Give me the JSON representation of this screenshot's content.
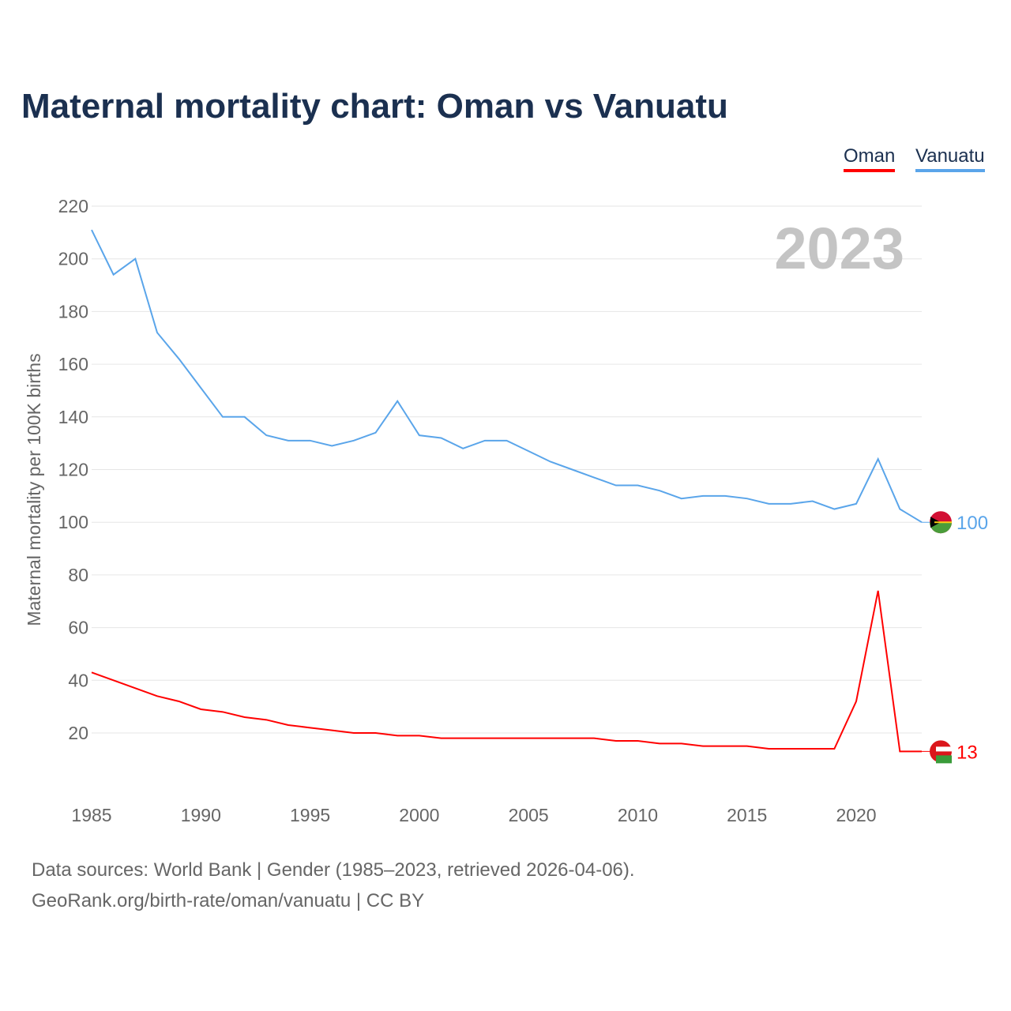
{
  "title": "Maternal mortality chart: Oman vs Vanuatu",
  "year_watermark": "2023",
  "footer": {
    "line1": "Data sources: World Bank | Gender (1985–2023, retrieved 2026-04-06).",
    "line2": "GeoRank.org/birth-rate/oman/vanuatu | CC BY"
  },
  "chart_data": {
    "type": "line",
    "title": "Maternal mortality chart: Oman vs Vanuatu",
    "xlabel": "",
    "ylabel": "Maternal mortality per 100K births",
    "xlim": [
      1985,
      2023
    ],
    "ylim": [
      0,
      220
    ],
    "x_ticks": [
      1985,
      1990,
      1995,
      2000,
      2005,
      2010,
      2015,
      2020
    ],
    "y_ticks": [
      20,
      40,
      60,
      80,
      100,
      120,
      140,
      160,
      180,
      200,
      220
    ],
    "grid": true,
    "legend_position": "top-right",
    "x": [
      1985,
      1986,
      1987,
      1988,
      1989,
      1990,
      1991,
      1992,
      1993,
      1994,
      1995,
      1996,
      1997,
      1998,
      1999,
      2000,
      2001,
      2002,
      2003,
      2004,
      2005,
      2006,
      2007,
      2008,
      2009,
      2010,
      2011,
      2012,
      2013,
      2014,
      2015,
      2016,
      2017,
      2018,
      2019,
      2020,
      2021,
      2022,
      2023
    ],
    "series": [
      {
        "name": "Oman",
        "color": "#ff0000",
        "end_label": "13",
        "values": [
          43,
          40,
          37,
          34,
          32,
          29,
          28,
          26,
          25,
          23,
          22,
          21,
          20,
          20,
          19,
          19,
          18,
          18,
          18,
          18,
          18,
          18,
          18,
          18,
          17,
          17,
          16,
          16,
          15,
          15,
          15,
          14,
          14,
          14,
          14,
          32,
          74,
          13,
          13
        ]
      },
      {
        "name": "Vanuatu",
        "color": "#5aa5ea",
        "end_label": "100",
        "values": [
          211,
          194,
          200,
          172,
          162,
          151,
          140,
          140,
          133,
          131,
          131,
          129,
          131,
          134,
          146,
          133,
          132,
          128,
          131,
          131,
          127,
          123,
          120,
          117,
          114,
          114,
          112,
          109,
          110,
          110,
          109,
          107,
          107,
          108,
          105,
          107,
          124,
          105,
          100
        ]
      }
    ]
  }
}
